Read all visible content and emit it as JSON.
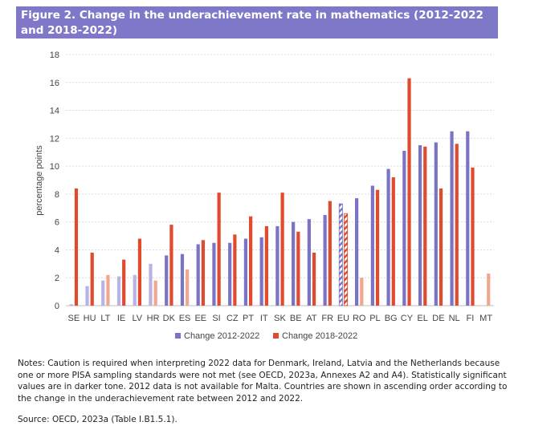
{
  "figure": {
    "title": "Figure 2. Change in the underachievement rate in mathematics (2012-2022 and 2018-2022)"
  },
  "chart_data": {
    "type": "bar",
    "ylabel": "percentage points",
    "xlabel": "",
    "ylim": [
      0,
      18
    ],
    "yticks": [
      0,
      2,
      4,
      6,
      8,
      10,
      12,
      14,
      16,
      18
    ],
    "grid": true,
    "legend_position": "bottom",
    "categories": [
      "SE",
      "HU",
      "LT",
      "IE",
      "LV",
      "HR",
      "DK",
      "ES",
      "EE",
      "SI",
      "CZ",
      "PT",
      "IT",
      "SK",
      "BE",
      "AT",
      "FR",
      "EU",
      "RO",
      "PL",
      "BG",
      "CY",
      "EL",
      "DE",
      "NL",
      "FI",
      "MT"
    ],
    "series": [
      {
        "name": "Change 2012-2022",
        "color": "#7b73c4",
        "light_color": "#b9b3e3",
        "values": [
          0.1,
          1.4,
          1.8,
          2.1,
          2.2,
          3.0,
          3.6,
          3.7,
          4.4,
          4.5,
          4.5,
          4.8,
          4.9,
          5.7,
          6.0,
          6.2,
          6.5,
          7.3,
          7.7,
          8.6,
          9.8,
          11.1,
          11.5,
          11.7,
          12.5,
          12.5,
          null
        ],
        "significant": [
          false,
          false,
          false,
          false,
          false,
          false,
          true,
          true,
          true,
          true,
          true,
          true,
          true,
          true,
          true,
          true,
          true,
          true,
          true,
          true,
          true,
          true,
          true,
          true,
          true,
          true,
          false
        ]
      },
      {
        "name": "Change 2018-2022",
        "color": "#e04a2d",
        "light_color": "#f0a78e",
        "values": [
          8.4,
          3.8,
          2.2,
          3.3,
          4.8,
          1.8,
          5.8,
          2.6,
          4.7,
          8.1,
          5.1,
          6.4,
          5.7,
          8.1,
          5.3,
          3.8,
          7.5,
          6.6,
          2.0,
          8.3,
          9.2,
          16.3,
          11.4,
          8.4,
          11.6,
          9.9,
          2.3
        ],
        "significant": [
          true,
          true,
          false,
          true,
          true,
          false,
          true,
          false,
          true,
          true,
          true,
          true,
          true,
          true,
          true,
          true,
          true,
          true,
          false,
          true,
          true,
          true,
          true,
          true,
          true,
          true,
          false
        ]
      }
    ],
    "hatched_category": "EU"
  },
  "notes": "Notes: Caution is required when interpreting 2022 data for Denmark, Ireland, Latvia and the Netherlands because one or more PISA sampling standards were not met (see OECD, 2023a, Annexes A2 and A4). Statistically significant values are in darker tone. 2012 data is not available for Malta. Countries are shown in ascending order according to the change in the underachievement rate between 2012 and 2022.",
  "source": "Source: OECD, 2023a (Table I.B1.5.1)."
}
